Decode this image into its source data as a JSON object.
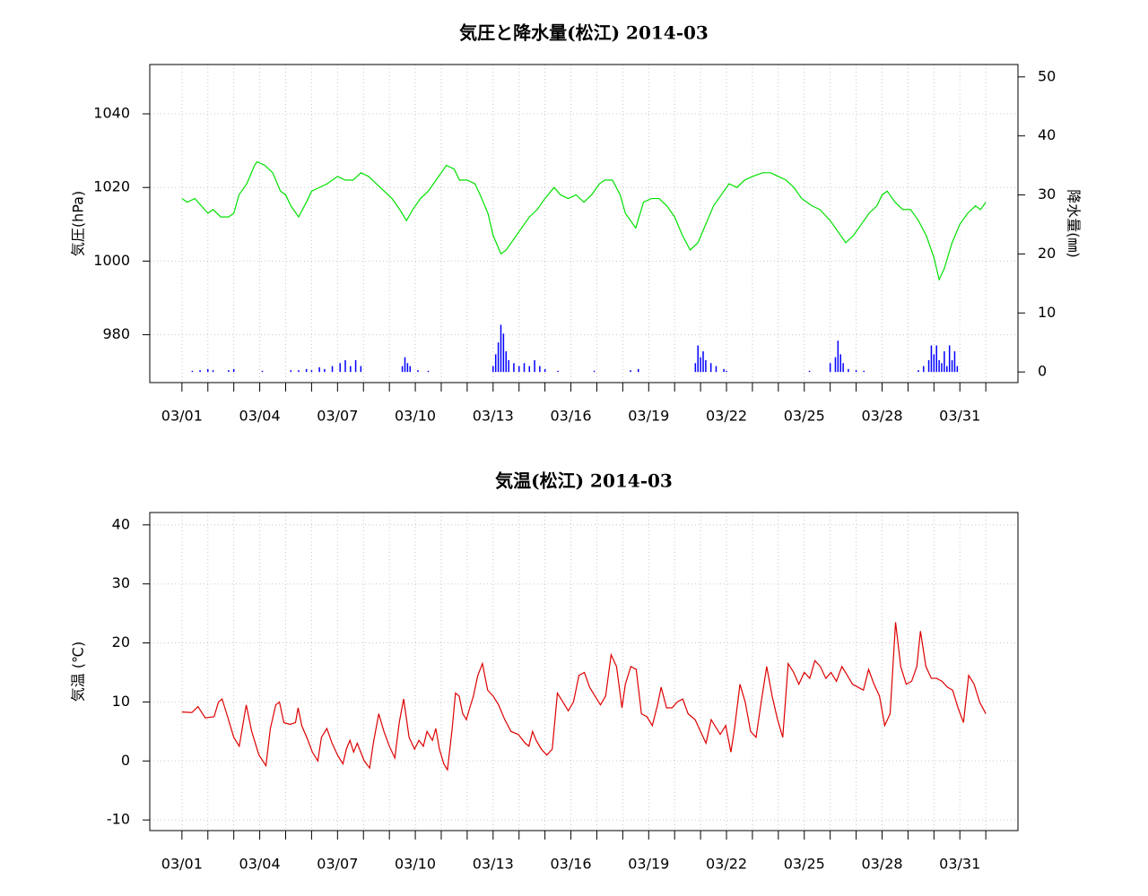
{
  "chart_data": [
    {
      "type": "line",
      "title": "気圧と降水量(松江) 2014-03",
      "ylabel": "気圧(hPa)",
      "y2label": "降水量(㎜)",
      "xlim": [
        -0.24,
        33.24
      ],
      "ylim": [
        967,
        1053.4
      ],
      "y2lim": [
        -1.8,
        52.1
      ],
      "grid": true,
      "xticks": [
        {
          "value": 1,
          "label": "03/01"
        },
        {
          "value": 4,
          "label": "03/04"
        },
        {
          "value": 7,
          "label": "03/07"
        },
        {
          "value": 10,
          "label": "03/10"
        },
        {
          "value": 13,
          "label": "03/13"
        },
        {
          "value": 16,
          "label": "03/16"
        },
        {
          "value": 19,
          "label": "03/19"
        },
        {
          "value": 22,
          "label": "03/22"
        },
        {
          "value": 25,
          "label": "03/25"
        },
        {
          "value": 28,
          "label": "03/28"
        },
        {
          "value": 31,
          "label": "03/31"
        }
      ],
      "xminorticks": [
        2,
        3,
        5,
        6,
        8,
        9,
        11,
        12,
        14,
        15,
        17,
        18,
        20,
        21,
        23,
        24,
        26,
        27,
        29,
        30,
        32
      ],
      "yticks": [
        980,
        1000,
        1020,
        1040
      ],
      "y2ticks": [
        0,
        10,
        20,
        30,
        40,
        50
      ],
      "series": [
        {
          "type": "line",
          "color": "#00e000",
          "x": [
            1,
            1.2,
            1.5,
            2.0,
            2.2,
            2.5,
            2.8,
            3.0,
            3.2,
            3.5,
            3.8,
            3.9,
            4.2,
            4.5,
            4.8,
            5.0,
            5.2,
            5.5,
            5.8,
            6.0,
            6.3,
            6.6,
            7.0,
            7.3,
            7.6,
            7.9,
            8.2,
            8.5,
            8.8,
            9.1,
            9.4,
            9.66,
            9.9,
            10.2,
            10.5,
            10.8,
            11.2,
            11.5,
            11.7,
            12.0,
            12.3,
            12.5,
            12.8,
            13.0,
            13.3,
            13.5,
            13.8,
            14.1,
            14.4,
            14.7,
            15.0,
            15.35,
            15.6,
            15.9,
            16.2,
            16.5,
            16.8,
            17.1,
            17.3,
            17.6,
            17.9,
            18.1,
            18.5,
            18.8,
            19.1,
            19.4,
            19.7,
            20.0,
            20.3,
            20.6,
            20.9,
            21.2,
            21.5,
            21.8,
            22.1,
            22.4,
            22.7,
            23.0,
            23.4,
            23.7,
            24.0,
            24.3,
            24.6,
            24.9,
            25.3,
            25.6,
            26.0,
            26.3,
            26.6,
            26.9,
            27.2,
            27.5,
            27.8,
            28.0,
            28.2,
            28.5,
            28.8,
            29.1,
            29.4,
            29.7,
            30.0,
            30.2,
            30.4,
            30.7,
            31.0,
            31.3,
            31.6,
            31.8,
            32.0
          ],
          "values": [
            1017,
            1016,
            1017,
            1013,
            1014,
            1012,
            1012,
            1013,
            1018,
            1021,
            1026,
            1027,
            1026,
            1024,
            1019,
            1018,
            1015,
            1012,
            1016,
            1019,
            1020,
            1021,
            1023,
            1022,
            1022,
            1024,
            1023,
            1021,
            1019,
            1017,
            1014,
            1011,
            1014,
            1017,
            1019,
            1022,
            1026,
            1025,
            1022,
            1022,
            1021,
            1018,
            1013,
            1007,
            1002,
            1003,
            1006,
            1009,
            1012,
            1014,
            1017,
            1020,
            1018,
            1017,
            1018,
            1016,
            1018,
            1021,
            1022,
            1022,
            1018,
            1013,
            1009,
            1016,
            1017,
            1017,
            1015,
            1012,
            1007,
            1003,
            1005,
            1010,
            1015,
            1018,
            1021,
            1020,
            1022,
            1023,
            1024,
            1024,
            1023,
            1022,
            1020,
            1017,
            1015,
            1014,
            1011,
            1008,
            1005,
            1007,
            1010,
            1013,
            1015,
            1018,
            1019,
            1016,
            1014,
            1014,
            1011,
            1007,
            1001,
            995,
            998,
            1005,
            1010,
            1013,
            1015,
            1014,
            1016
          ]
        },
        {
          "type": "bar",
          "axis": "y2",
          "color": "#0000ff",
          "x": [
            1.4,
            1.7,
            2.0,
            2.2,
            2.8,
            3.0,
            4.1,
            5.2,
            5.5,
            5.8,
            6.0,
            6.3,
            6.5,
            6.8,
            7.1,
            7.3,
            7.5,
            7.7,
            7.9,
            9.5,
            9.6,
            9.7,
            9.8,
            10.1,
            10.5,
            13.0,
            13.1,
            13.2,
            13.3,
            13.4,
            13.5,
            13.6,
            13.8,
            14.0,
            14.2,
            14.4,
            14.6,
            14.8,
            15.0,
            15.5,
            16.9,
            18.3,
            18.6,
            20.8,
            20.9,
            21.0,
            21.1,
            21.2,
            21.4,
            21.6,
            21.9,
            22.0,
            25.2,
            26.0,
            26.2,
            26.3,
            26.4,
            26.5,
            26.7,
            27.0,
            27.3,
            29.4,
            29.6,
            29.8,
            29.9,
            30.0,
            30.1,
            30.2,
            30.3,
            30.4,
            30.5,
            30.6,
            30.7,
            30.8,
            30.9
          ],
          "values": [
            0.2,
            0.3,
            0.5,
            0.3,
            0.3,
            0.5,
            0.2,
            0.3,
            0.3,
            0.5,
            0.3,
            0.8,
            0.5,
            1.0,
            1.5,
            2.0,
            1.0,
            2.0,
            1.0,
            1.0,
            2.5,
            1.5,
            1.0,
            0.3,
            0.2,
            1.0,
            3.0,
            5.0,
            8.0,
            6.5,
            3.5,
            2.0,
            1.5,
            1.0,
            1.5,
            1.0,
            2.0,
            1.0,
            0.5,
            0.2,
            0.2,
            0.3,
            0.5,
            1.5,
            4.5,
            2.5,
            3.5,
            2.0,
            1.5,
            1.0,
            0.5,
            0.2,
            0.2,
            1.5,
            2.5,
            5.3,
            3.0,
            1.5,
            0.5,
            0.3,
            0.2,
            0.3,
            1.0,
            2.0,
            4.5,
            3.0,
            4.5,
            2.0,
            1.5,
            3.5,
            1.0,
            4.5,
            2.0,
            3.5,
            1.0
          ]
        }
      ]
    },
    {
      "type": "line",
      "title": "気温(松江) 2014-03",
      "ylabel": "気温 (℃)",
      "xlim": [
        -0.24,
        33.24
      ],
      "ylim": [
        -11.8,
        42.1
      ],
      "grid": true,
      "xticks": [
        {
          "value": 1,
          "label": "03/01"
        },
        {
          "value": 4,
          "label": "03/04"
        },
        {
          "value": 7,
          "label": "03/07"
        },
        {
          "value": 10,
          "label": "03/10"
        },
        {
          "value": 13,
          "label": "03/13"
        },
        {
          "value": 16,
          "label": "03/16"
        },
        {
          "value": 19,
          "label": "03/19"
        },
        {
          "value": 22,
          "label": "03/22"
        },
        {
          "value": 25,
          "label": "03/25"
        },
        {
          "value": 28,
          "label": "03/28"
        },
        {
          "value": 31,
          "label": "03/31"
        }
      ],
      "xminorticks": [
        2,
        3,
        5,
        6,
        8,
        9,
        11,
        12,
        14,
        15,
        17,
        18,
        20,
        21,
        23,
        24,
        26,
        27,
        29,
        30,
        32
      ],
      "yticks": [
        -10,
        0,
        10,
        20,
        30,
        40
      ],
      "series": [
        {
          "type": "line",
          "color": "#dd0000",
          "x": [
            1.0,
            1.38,
            1.62,
            1.9,
            2.24,
            2.41,
            2.55,
            2.76,
            3.0,
            3.21,
            3.48,
            3.69,
            3.97,
            4.24,
            4.41,
            4.62,
            4.76,
            4.93,
            5.17,
            5.38,
            5.48,
            5.62,
            5.86,
            6.03,
            6.24,
            6.38,
            6.59,
            6.79,
            7.0,
            7.21,
            7.34,
            7.48,
            7.62,
            7.76,
            8.03,
            8.24,
            8.38,
            8.59,
            8.79,
            9.0,
            9.21,
            9.38,
            9.55,
            9.76,
            9.97,
            10.14,
            10.31,
            10.45,
            10.66,
            10.79,
            10.93,
            11.1,
            11.24,
            11.41,
            11.55,
            11.69,
            11.83,
            11.97,
            12.1,
            12.24,
            12.41,
            12.59,
            12.79,
            13.0,
            13.21,
            13.45,
            13.69,
            13.97,
            14.24,
            14.38,
            14.52,
            14.66,
            14.86,
            15.07,
            15.28,
            15.48,
            15.69,
            15.9,
            16.1,
            16.31,
            16.52,
            16.72,
            16.93,
            17.14,
            17.34,
            17.55,
            17.76,
            17.97,
            18.1,
            18.31,
            18.52,
            18.72,
            18.93,
            19.14,
            19.34,
            19.48,
            19.69,
            19.9,
            20.1,
            20.31,
            20.52,
            20.79,
            21.0,
            21.21,
            21.41,
            21.55,
            21.76,
            21.97,
            22.17,
            22.31,
            22.52,
            22.72,
            22.93,
            23.14,
            23.34,
            23.55,
            23.76,
            23.97,
            24.17,
            24.38,
            24.59,
            24.79,
            25.0,
            25.21,
            25.41,
            25.62,
            25.83,
            26.03,
            26.24,
            26.45,
            26.66,
            26.86,
            27.07,
            27.28,
            27.48,
            27.69,
            27.9,
            28.1,
            28.31,
            28.52,
            28.72,
            28.93,
            29.14,
            29.34,
            29.48,
            29.69,
            29.9,
            30.1,
            30.31,
            30.52,
            30.72,
            30.93,
            31.14,
            31.34,
            31.55,
            31.76,
            32.0
          ],
          "values": [
            8.3,
            8.2,
            9.2,
            7.3,
            7.5,
            10.0,
            10.5,
            7.5,
            4.0,
            2.5,
            9.5,
            5.0,
            1.0,
            -0.8,
            5.5,
            9.5,
            10.0,
            6.5,
            6.2,
            6.5,
            9.0,
            6.0,
            3.5,
            1.5,
            0.0,
            4.0,
            5.5,
            3.0,
            1.0,
            -0.5,
            2.0,
            3.5,
            1.5,
            3.0,
            0.0,
            -1.2,
            3.0,
            8.0,
            5.0,
            2.5,
            0.5,
            6.5,
            10.5,
            4.0,
            2.0,
            3.5,
            2.5,
            5.0,
            3.5,
            5.5,
            2.0,
            -0.5,
            -1.5,
            5.0,
            11.5,
            11.0,
            8.0,
            7.0,
            9.0,
            11.0,
            14.5,
            16.5,
            12.0,
            11.0,
            9.5,
            7.0,
            5.0,
            4.5,
            3.0,
            2.5,
            5.0,
            3.5,
            2.0,
            1.0,
            2.0,
            11.5,
            10.0,
            8.5,
            10.0,
            14.5,
            15.0,
            12.5,
            11.0,
            9.5,
            11.0,
            18.0,
            16.0,
            9.0,
            13.0,
            16.0,
            15.5,
            8.0,
            7.5,
            6.0,
            9.5,
            12.5,
            9.0,
            9.0,
            10.0,
            10.5,
            8.0,
            7.0,
            5.0,
            3.0,
            7.0,
            6.0,
            4.5,
            6.0,
            1.5,
            5.5,
            13.0,
            10.0,
            5.0,
            4.0,
            10.0,
            16.0,
            11.0,
            7.0,
            4.0,
            16.5,
            15.0,
            13.0,
            15.0,
            14.0,
            17.0,
            16.0,
            14.0,
            15.0,
            13.5,
            16.0,
            14.5,
            13.0,
            12.5,
            12.0,
            15.5,
            13.0,
            11.0,
            6.0,
            8.0,
            23.5,
            16.0,
            13.0,
            13.5,
            16.0,
            22.0,
            16.0,
            14.0,
            14.0,
            13.5,
            12.5,
            12.0,
            9.0,
            6.5,
            14.5,
            13.0,
            10.0,
            8.0
          ]
        }
      ]
    }
  ]
}
